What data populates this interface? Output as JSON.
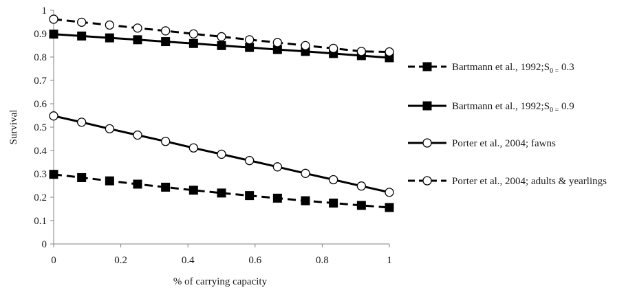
{
  "chart_data": {
    "type": "line",
    "xlabel": "% of carrying capacity",
    "ylabel": "Survival",
    "xlim": [
      0,
      1
    ],
    "ylim": [
      0,
      1
    ],
    "x_ticks": [
      "0",
      "0.2",
      "0.4",
      "0.6",
      "0.8",
      "1"
    ],
    "y_ticks": [
      "0",
      "0.1",
      "0.2",
      "0.3",
      "0.4",
      "0.5",
      "0.6",
      "0.7",
      "0.8",
      "0.9",
      "1"
    ],
    "grid": false,
    "legend_position": "right",
    "x": [
      0,
      0.0833,
      0.1667,
      0.25,
      0.3333,
      0.4167,
      0.5,
      0.5833,
      0.6667,
      0.75,
      0.8333,
      0.9167,
      1
    ],
    "series": [
      {
        "name": "Bartmann et al., 1992;S0= 0.3",
        "label_main": "Bartmann et al., 1992;S",
        "label_sub": "0 =",
        "label_tail": " 0.3",
        "line": "dashed",
        "marker": "square",
        "values": [
          0.298,
          0.284,
          0.27,
          0.256,
          0.243,
          0.23,
          0.218,
          0.207,
          0.196,
          0.185,
          0.175,
          0.165,
          0.156
        ]
      },
      {
        "name": "Bartmann et al., 1992;S0= 0.9",
        "label_main": "Bartmann et al., 1992;S",
        "label_sub": "0 =",
        "label_tail": " 0.9",
        "line": "solid",
        "marker": "square",
        "values": [
          0.898,
          0.89,
          0.882,
          0.874,
          0.866,
          0.858,
          0.849,
          0.841,
          0.832,
          0.824,
          0.815,
          0.806,
          0.797
        ]
      },
      {
        "name": "Porter et al., 2004; fawns",
        "label_main": "Porter et al., 2004; fawns",
        "line": "solid",
        "marker": "circle",
        "values": [
          0.548,
          0.521,
          0.493,
          0.466,
          0.439,
          0.411,
          0.384,
          0.357,
          0.33,
          0.302,
          0.275,
          0.248,
          0.221
        ]
      },
      {
        "name": "Porter et al., 2004; adults & yearlings",
        "label_main": "Porter et al., 2004; adults & yearlings",
        "line": "dashed",
        "marker": "circle",
        "values": [
          0.962,
          0.949,
          0.937,
          0.924,
          0.912,
          0.899,
          0.887,
          0.874,
          0.862,
          0.849,
          0.837,
          0.824,
          0.822
        ]
      }
    ],
    "colors": {
      "line": "#000000",
      "marker_fill_square": "#000000",
      "marker_fill_circle": "#ffffff"
    }
  }
}
